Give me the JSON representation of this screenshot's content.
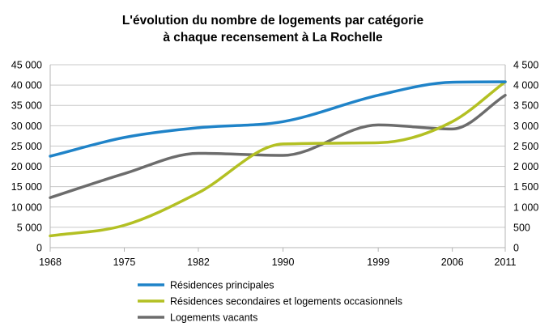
{
  "chart_data": {
    "type": "line",
    "title_lines": [
      "L'évolution du nombre de logements par catégorie",
      "à chaque recensement à La Rochelle"
    ],
    "x": [
      1968,
      1975,
      1982,
      1990,
      1999,
      2006,
      2011
    ],
    "x_tick_labels": [
      "1968",
      "1975",
      "1982",
      "1990",
      "1999",
      "2006",
      "2011"
    ],
    "y_left": {
      "min": 0,
      "max": 45000,
      "step": 5000,
      "tick_labels": [
        "0",
        "5 000",
        "10 000",
        "15 000",
        "20 000",
        "25 000",
        "30 000",
        "35 000",
        "40 000",
        "45 000"
      ]
    },
    "y_right": {
      "min": 0,
      "max": 4500,
      "step": 500,
      "tick_labels": [
        "0",
        "500",
        "1 000",
        "1 500",
        "2 000",
        "2 500",
        "3 000",
        "3 500",
        "4 000",
        "4 500"
      ]
    },
    "series": [
      {
        "name": "Résidences principales",
        "axis": "left",
        "color": "#1f83c8",
        "values": [
          22500,
          27100,
          29500,
          31000,
          37500,
          40700,
          40800
        ]
      },
      {
        "name": "Résidences secondaires et logements occasionnels",
        "axis": "right",
        "color": "#b3c023",
        "values": [
          290,
          550,
          1350,
          2550,
          2580,
          3100,
          4080
        ]
      },
      {
        "name": "Logements vacants",
        "axis": "right",
        "color": "#6c6c6c",
        "values": [
          1230,
          1820,
          2320,
          2270,
          3020,
          2920,
          3750
        ]
      }
    ],
    "grid": "horizontal",
    "legend_position": "bottom"
  }
}
